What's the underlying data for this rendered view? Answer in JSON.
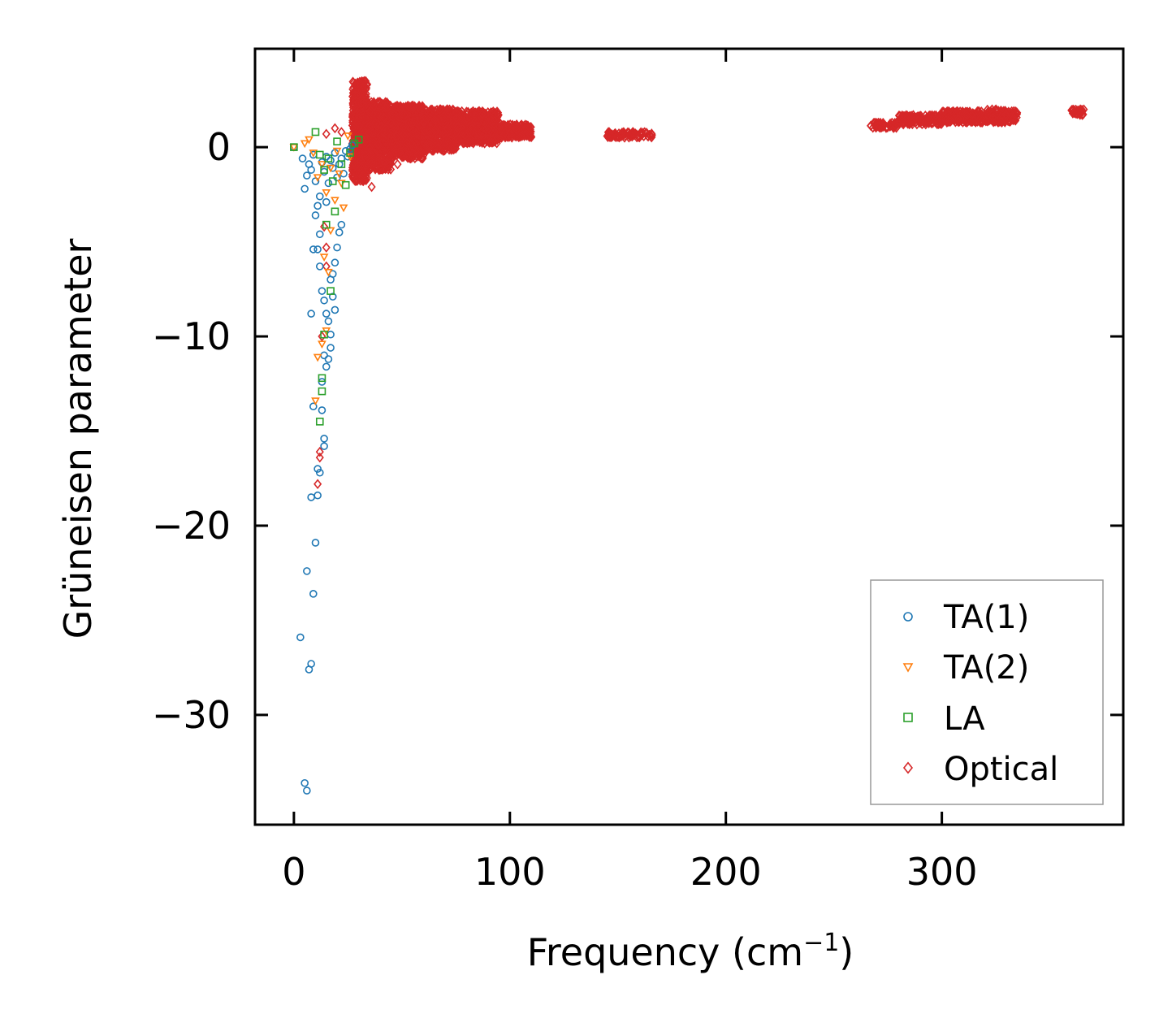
{
  "chart_data": {
    "type": "scatter",
    "title": "",
    "xlabel": "Frequency (cm",
    "xlabel_sup": "−1",
    "xlabel_close": ")",
    "ylabel": "Grüneisen parameter",
    "xlim": [
      -18,
      384
    ],
    "ylim": [
      -35.8,
      5.2
    ],
    "xticks": [
      0,
      100,
      200,
      300
    ],
    "xtick_labels": [
      "0",
      "100",
      "200",
      "300"
    ],
    "yticks": [
      0,
      -10,
      -20,
      -30
    ],
    "ytick_labels": [
      "0",
      "−10",
      "−20",
      "−30"
    ],
    "legend_position": "lower-right",
    "series": [
      {
        "name": "TA(1)",
        "marker": "circle",
        "color": "#1f77b4",
        "points": [
          [
            0,
            0
          ],
          [
            4,
            -0.6
          ],
          [
            5,
            -2.2
          ],
          [
            6,
            -1.5
          ],
          [
            7,
            -0.9
          ],
          [
            8,
            -1.2
          ],
          [
            9,
            -0.4
          ],
          [
            10,
            -1.8
          ],
          [
            11,
            -3.1
          ],
          [
            12,
            -2.6
          ],
          [
            13,
            -0.8
          ],
          [
            14,
            -1.3
          ],
          [
            15,
            -0.5
          ],
          [
            16,
            -1.9
          ],
          [
            17,
            -0.7
          ],
          [
            18,
            -1.1
          ],
          [
            19,
            -0.3
          ],
          [
            20,
            -1.6
          ],
          [
            21,
            -0.9
          ],
          [
            22,
            -0.6
          ],
          [
            23,
            -1.4
          ],
          [
            24,
            -0.2
          ],
          [
            25,
            -0.5
          ],
          [
            26,
            -0.1
          ],
          [
            27,
            0.1
          ],
          [
            10,
            -3.6
          ],
          [
            11,
            -5.4
          ],
          [
            12,
            -6.3
          ],
          [
            13,
            -7.6
          ],
          [
            14,
            -8.1
          ],
          [
            15,
            -8.8
          ],
          [
            16,
            -9.2
          ],
          [
            17,
            -9.9
          ],
          [
            18,
            -6.7
          ],
          [
            19,
            -6.1
          ],
          [
            20,
            -5.3
          ],
          [
            21,
            -4.5
          ],
          [
            22,
            -4.1
          ],
          [
            17,
            -7.0
          ],
          [
            18,
            -7.9
          ],
          [
            19,
            -8.6
          ],
          [
            14,
            -11.0
          ],
          [
            15,
            -11.6
          ],
          [
            16,
            -11.2
          ],
          [
            17,
            -10.6
          ],
          [
            13,
            -12.4
          ],
          [
            8,
            -8.8
          ],
          [
            9,
            -13.7
          ],
          [
            13,
            -13.9
          ],
          [
            14,
            -15.4
          ],
          [
            14,
            -15.8
          ],
          [
            11,
            -17.0
          ],
          [
            12,
            -17.2
          ],
          [
            8,
            -18.5
          ],
          [
            11,
            -18.4
          ],
          [
            10,
            -20.9
          ],
          [
            6,
            -22.4
          ],
          [
            9,
            -23.6
          ],
          [
            3,
            -25.9
          ],
          [
            8,
            -27.3
          ],
          [
            7,
            -27.6
          ],
          [
            5,
            -33.6
          ],
          [
            6,
            -34.0
          ],
          [
            9,
            -5.4
          ],
          [
            15,
            -2.9
          ],
          [
            12,
            -4.6
          ]
        ]
      },
      {
        "name": "TA(2)",
        "marker": "triangle-down",
        "color": "#ff7f0e",
        "points": [
          [
            0,
            0
          ],
          [
            5,
            0.2
          ],
          [
            7,
            0.4
          ],
          [
            9,
            -0.3
          ],
          [
            11,
            -1.6
          ],
          [
            13,
            -0.9
          ],
          [
            15,
            -2.4
          ],
          [
            17,
            -1.1
          ],
          [
            19,
            -2.8
          ],
          [
            21,
            -1.4
          ],
          [
            23,
            -3.2
          ],
          [
            25,
            0.6
          ],
          [
            26,
            -0.5
          ],
          [
            14,
            -5.8
          ],
          [
            16,
            -6.6
          ],
          [
            17,
            -4.4
          ],
          [
            11,
            -11.1
          ],
          [
            13,
            -10.4
          ],
          [
            10,
            -13.4
          ],
          [
            15,
            -9.7
          ],
          [
            20,
            -0.2
          ],
          [
            22,
            -1.9
          ]
        ]
      },
      {
        "name": "LA",
        "marker": "square",
        "color": "#2ca02c",
        "points": [
          [
            0,
            0
          ],
          [
            10,
            0.8
          ],
          [
            12,
            -0.4
          ],
          [
            14,
            -1.2
          ],
          [
            16,
            -0.6
          ],
          [
            18,
            -1.8
          ],
          [
            20,
            0.3
          ],
          [
            22,
            -0.9
          ],
          [
            24,
            -2.0
          ],
          [
            26,
            -0.3
          ],
          [
            28,
            0.2
          ],
          [
            30,
            0.4
          ],
          [
            17,
            -7.6
          ],
          [
            14,
            -9.9
          ],
          [
            13,
            -12.2
          ],
          [
            13,
            -12.9
          ],
          [
            12,
            -14.5
          ],
          [
            15,
            -4.1
          ],
          [
            19,
            -3.4
          ]
        ]
      },
      {
        "name": "Optical",
        "marker": "diamond",
        "color": "#d62728",
        "points": [
          [
            15,
            0.7
          ],
          [
            19,
            1.0
          ],
          [
            22,
            0.8
          ],
          [
            14,
            -4.2
          ],
          [
            15,
            -5.3
          ],
          [
            15,
            -6.3
          ],
          [
            13,
            -10.0
          ],
          [
            12,
            -16.1
          ],
          [
            12,
            -16.4
          ],
          [
            11,
            -17.8
          ],
          [
            36,
            -2.1
          ],
          [
            48,
            -0.9
          ],
          [
            55,
            -0.5
          ]
        ],
        "bands": [
          {
            "x": [
              27,
              34
            ],
            "ymin": -1.8,
            "ymax": 3.5
          },
          {
            "x": [
              34,
              45
            ],
            "ymin": -1.2,
            "ymax": 2.4
          },
          {
            "x": [
              45,
              60
            ],
            "ymin": -0.6,
            "ymax": 2.2
          },
          {
            "x": [
              60,
              75
            ],
            "ymin": -0.2,
            "ymax": 2.0
          },
          {
            "x": [
              75,
              95
            ],
            "ymin": 0.2,
            "ymax": 1.9
          },
          {
            "x": [
              95,
              110
            ],
            "ymin": 0.5,
            "ymax": 1.2
          },
          {
            "x": [
              145,
              166
            ],
            "ymin": 0.5,
            "ymax": 0.8
          },
          {
            "x": [
              267,
              280
            ],
            "ymin": 1.0,
            "ymax": 1.3
          },
          {
            "x": [
              280,
              300
            ],
            "ymin": 1.2,
            "ymax": 1.7
          },
          {
            "x": [
              300,
              320
            ],
            "ymin": 1.3,
            "ymax": 1.9
          },
          {
            "x": [
              320,
              335
            ],
            "ymin": 1.3,
            "ymax": 2.0
          },
          {
            "x": [
              360,
              366
            ],
            "ymin": 1.7,
            "ymax": 2.0
          }
        ]
      }
    ]
  }
}
